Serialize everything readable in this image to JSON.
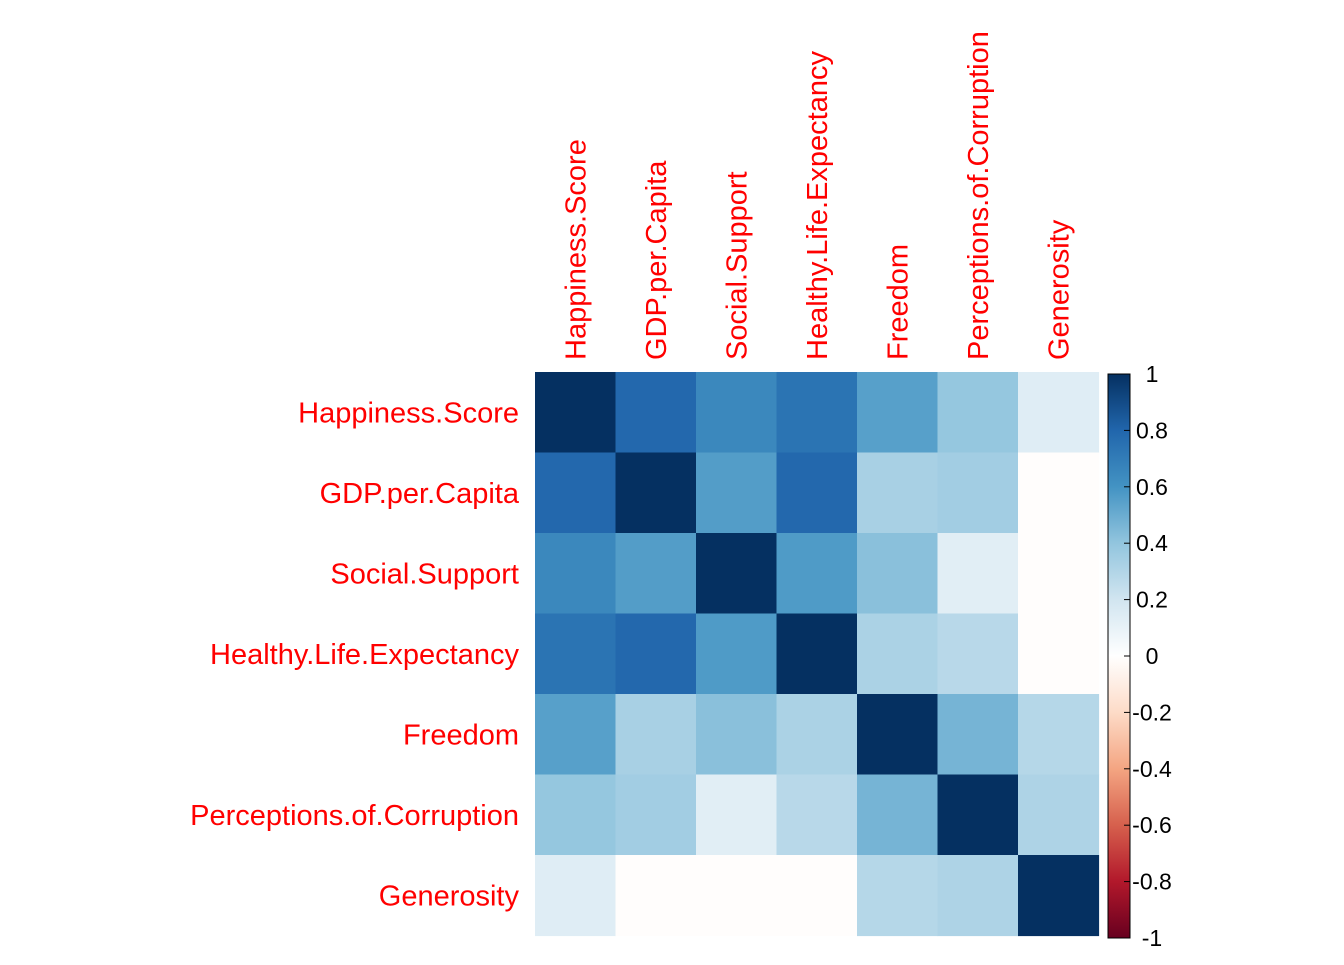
{
  "chart_data": {
    "type": "heatmap",
    "variables": [
      "Happiness.Score",
      "GDP.per.Capita",
      "Social.Support",
      "Healthy.Life.Expectancy",
      "Freedom",
      "Perceptions.of.Corruption",
      "Generosity"
    ],
    "values": [
      [
        1.0,
        0.79,
        0.65,
        0.74,
        0.55,
        0.39,
        0.14
      ],
      [
        0.79,
        1.0,
        0.56,
        0.79,
        0.33,
        0.35,
        -0.01
      ],
      [
        0.65,
        0.56,
        1.0,
        0.57,
        0.42,
        0.13,
        -0.01
      ],
      [
        0.74,
        0.79,
        0.57,
        1.0,
        0.32,
        0.28,
        -0.01
      ],
      [
        0.55,
        0.33,
        0.42,
        0.32,
        1.0,
        0.47,
        0.29
      ],
      [
        0.39,
        0.35,
        0.13,
        0.28,
        0.47,
        1.0,
        0.31
      ],
      [
        0.14,
        -0.01,
        -0.01,
        -0.01,
        0.29,
        0.31,
        1.0
      ]
    ],
    "legend": {
      "range": [
        -1,
        1
      ],
      "ticks": [
        "1",
        "0.8",
        "0.6",
        "0.4",
        "0.2",
        "0",
        "-0.2",
        "-0.4",
        "-0.6",
        "-0.8",
        "-1"
      ],
      "tick_values": [
        1,
        0.8,
        0.6,
        0.4,
        0.2,
        0,
        -0.2,
        -0.4,
        -0.6,
        -0.8,
        -1
      ],
      "placement": "right",
      "palette": {
        "stops": [
          -1,
          -0.8,
          -0.6,
          -0.4,
          -0.2,
          0,
          0.2,
          0.4,
          0.6,
          0.8,
          1
        ],
        "colors": [
          "#67001F",
          "#B2182B",
          "#D6604D",
          "#F4A582",
          "#FDDBC7",
          "#FFFFFF",
          "#D1E5F0",
          "#92C5DE",
          "#4393C3",
          "#2166AC",
          "#053061"
        ]
      }
    },
    "label_color": "#FF0000"
  }
}
